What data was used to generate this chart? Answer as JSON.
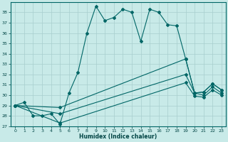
{
  "xlabel": "Humidex (Indice chaleur)",
  "bg_color": "#c8eae8",
  "grid_color": "#a8cece",
  "line_color": "#006666",
  "xlim": [
    -0.5,
    23.5
  ],
  "ylim": [
    27,
    39
  ],
  "yticks": [
    27,
    28,
    29,
    30,
    31,
    32,
    33,
    34,
    35,
    36,
    37,
    38
  ],
  "xticks": [
    0,
    1,
    2,
    3,
    4,
    5,
    6,
    7,
    8,
    9,
    10,
    11,
    12,
    13,
    14,
    15,
    16,
    17,
    18,
    19,
    20,
    21,
    22,
    23
  ],
  "s1_x": [
    0,
    1,
    2,
    3,
    4,
    5,
    6,
    7,
    8,
    9,
    10,
    11,
    12,
    13,
    14,
    15,
    16,
    17,
    18,
    19,
    20,
    21,
    22,
    23
  ],
  "s1_y": [
    29.0,
    29.3,
    28.0,
    28.0,
    28.2,
    27.2,
    30.2,
    32.2,
    36.0,
    38.6,
    37.2,
    37.5,
    38.3,
    38.0,
    35.2,
    38.3,
    38.0,
    36.8,
    36.7,
    33.5,
    30.2,
    30.3,
    31.1,
    30.5
  ],
  "s2_x": [
    0,
    5,
    19,
    20,
    21,
    22,
    23
  ],
  "s2_y": [
    29.0,
    28.8,
    33.5,
    30.2,
    30.3,
    31.1,
    30.5
  ],
  "s3_x": [
    0,
    5,
    19,
    20,
    21,
    22,
    23
  ],
  "s3_y": [
    29.0,
    28.2,
    32.0,
    30.2,
    30.0,
    30.8,
    30.2
  ],
  "s4_x": [
    0,
    5,
    19,
    20,
    21,
    22,
    23
  ],
  "s4_y": [
    29.0,
    27.3,
    31.2,
    29.9,
    29.8,
    30.5,
    30.0
  ]
}
